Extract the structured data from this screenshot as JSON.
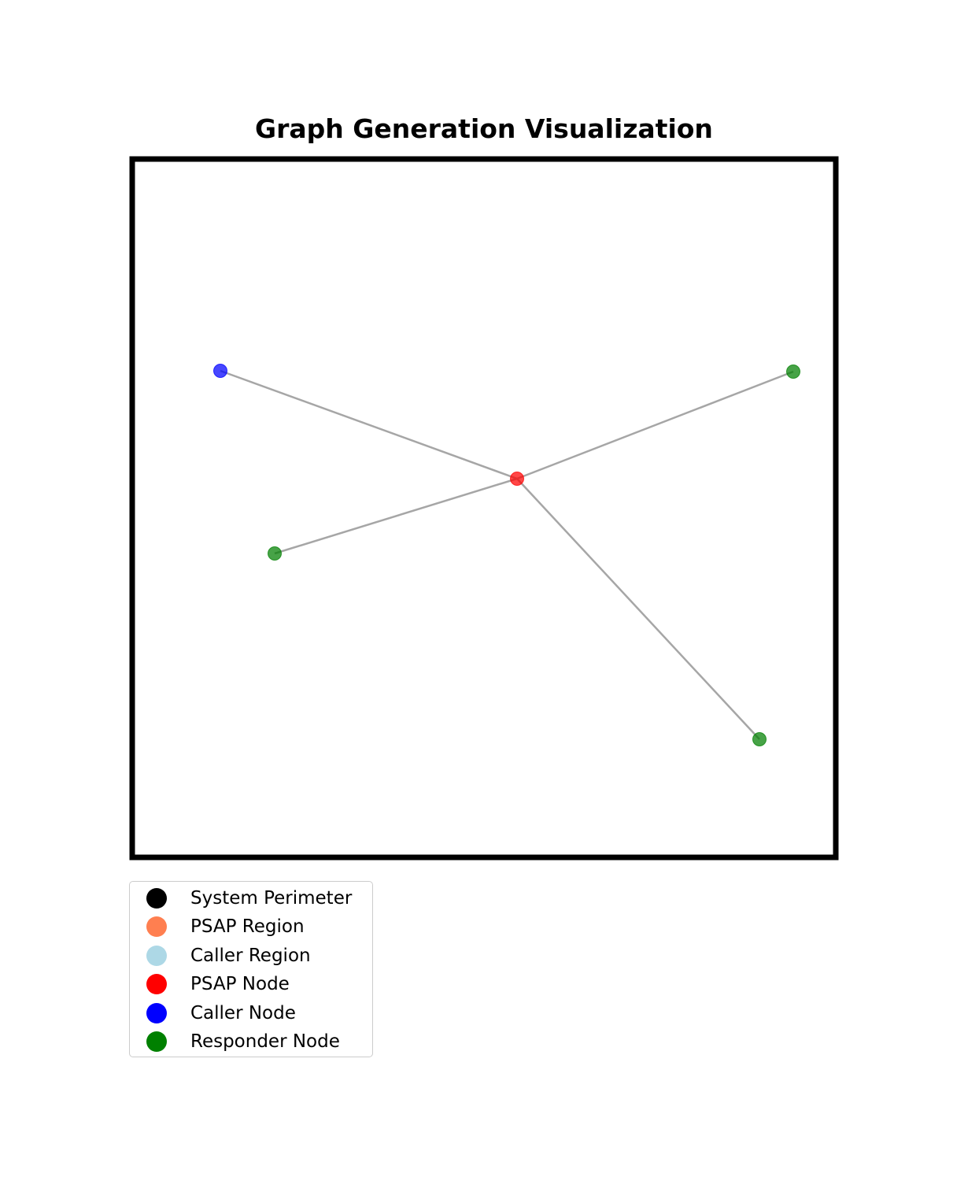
{
  "title": "Graph Generation Visualization",
  "nodes": [
    {
      "id": "psap",
      "role": "PSAP Node",
      "color": "#ff0000"
    },
    {
      "id": "caller",
      "role": "Caller Node",
      "color": "#0000ff"
    },
    {
      "id": "responder-1",
      "role": "Responder Node",
      "color": "#008000"
    },
    {
      "id": "responder-2",
      "role": "Responder Node",
      "color": "#008000"
    },
    {
      "id": "responder-3",
      "role": "Responder Node",
      "color": "#008000"
    }
  ],
  "edges": [
    {
      "from": "psap",
      "to": "caller"
    },
    {
      "from": "psap",
      "to": "responder-1"
    },
    {
      "from": "psap",
      "to": "responder-2"
    },
    {
      "from": "psap",
      "to": "responder-3"
    }
  ],
  "edge_color": "#a6a6a6",
  "border_color": "#000000",
  "legend": {
    "items": [
      {
        "label": "System Perimeter",
        "color": "#000000"
      },
      {
        "label": "PSAP Region",
        "color": "#ff7f50"
      },
      {
        "label": "Caller Region",
        "color": "#add8e6"
      },
      {
        "label": "PSAP Node",
        "color": "#ff0000"
      },
      {
        "label": "Caller Node",
        "color": "#0000ff"
      },
      {
        "label": "Responder Node",
        "color": "#008000"
      }
    ]
  }
}
